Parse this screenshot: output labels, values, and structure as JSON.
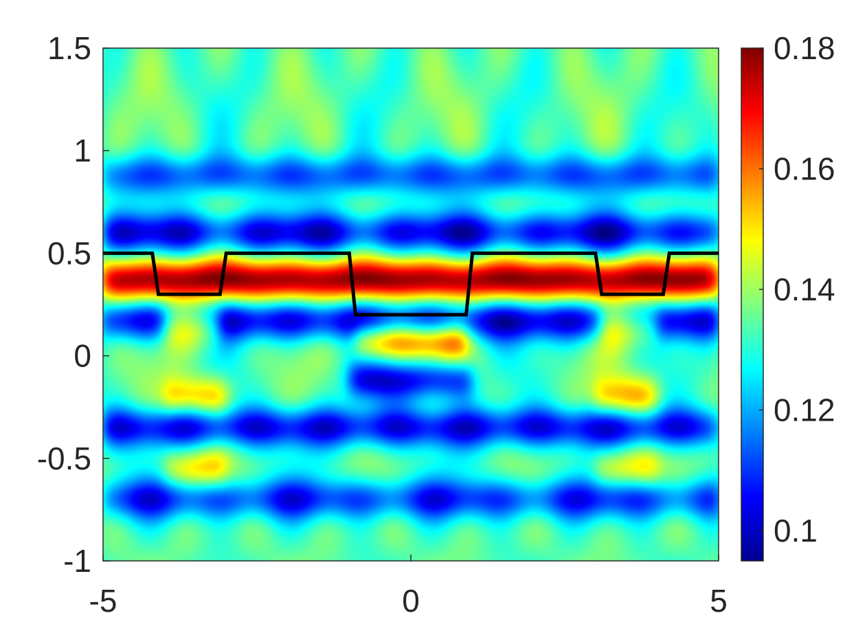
{
  "chart_data": {
    "type": "heatmap",
    "title": "",
    "xlabel": "",
    "ylabel": "",
    "xlim": [
      -5,
      5
    ],
    "ylim": [
      -1,
      1.5
    ],
    "x_ticks": [
      "-5",
      "0",
      "5"
    ],
    "y_ticks": [
      "-1",
      "-0.5",
      "0",
      "0.5",
      "1",
      "1.5"
    ],
    "x_tick_values": [
      -5,
      0,
      5
    ],
    "y_tick_values": [
      -1,
      -0.5,
      0,
      0.5,
      1,
      1.5
    ],
    "colorbar": {
      "colormap": "jet",
      "range": [
        0.095,
        0.18
      ],
      "tick_values": [
        0.1,
        0.12,
        0.14,
        0.16,
        0.18
      ],
      "ticks": [
        "0.1",
        "0.12",
        "0.14",
        "0.16",
        "0.18"
      ]
    },
    "profile_line": {
      "color": "#000000",
      "x": [
        -5,
        -4.2,
        -4.1,
        -3.1,
        -3.0,
        -1.0,
        -0.9,
        0.9,
        1.0,
        3.0,
        3.1,
        4.1,
        4.2,
        5
      ],
      "y": [
        0.5,
        0.5,
        0.3,
        0.3,
        0.5,
        0.5,
        0.2,
        0.2,
        0.5,
        0.5,
        0.3,
        0.3,
        0.5,
        0.5
      ]
    },
    "bands": [
      {
        "y": 0.37,
        "level": 0.178,
        "x_range": [
          -5,
          5
        ]
      },
      {
        "y": 0.6,
        "level": 0.105,
        "x_range": [
          -5,
          5
        ]
      },
      {
        "y": 0.17,
        "level": 0.103,
        "x_range": [
          -5,
          5
        ]
      },
      {
        "y": 0.88,
        "level": 0.113,
        "x_range": [
          -5,
          5
        ]
      },
      {
        "y": 0.08,
        "level": 0.165,
        "x_range": [
          -0.9,
          0.9
        ]
      },
      {
        "y": 0.15,
        "level": 0.168,
        "x_range": [
          -4.0,
          -3.1
        ]
      },
      {
        "y": 0.15,
        "level": 0.168,
        "x_range": [
          3.1,
          4.0
        ]
      },
      {
        "y": -0.2,
        "level": 0.155,
        "x_range": [
          -4.0,
          -3.0
        ]
      },
      {
        "y": -0.2,
        "level": 0.155,
        "x_range": [
          3.0,
          4.0
        ]
      },
      {
        "y": -0.55,
        "level": 0.15,
        "x_range": [
          -4.0,
          -3.0
        ]
      },
      {
        "y": -0.55,
        "level": 0.15,
        "x_range": [
          3.0,
          4.0
        ]
      },
      {
        "y": -0.12,
        "level": 0.105,
        "x_range": [
          -1.0,
          1.0
        ]
      },
      {
        "y": -0.35,
        "level": 0.105,
        "x_range": [
          -5,
          5
        ]
      },
      {
        "y": -0.7,
        "level": 0.11,
        "x_range": [
          -5,
          5
        ]
      }
    ]
  }
}
